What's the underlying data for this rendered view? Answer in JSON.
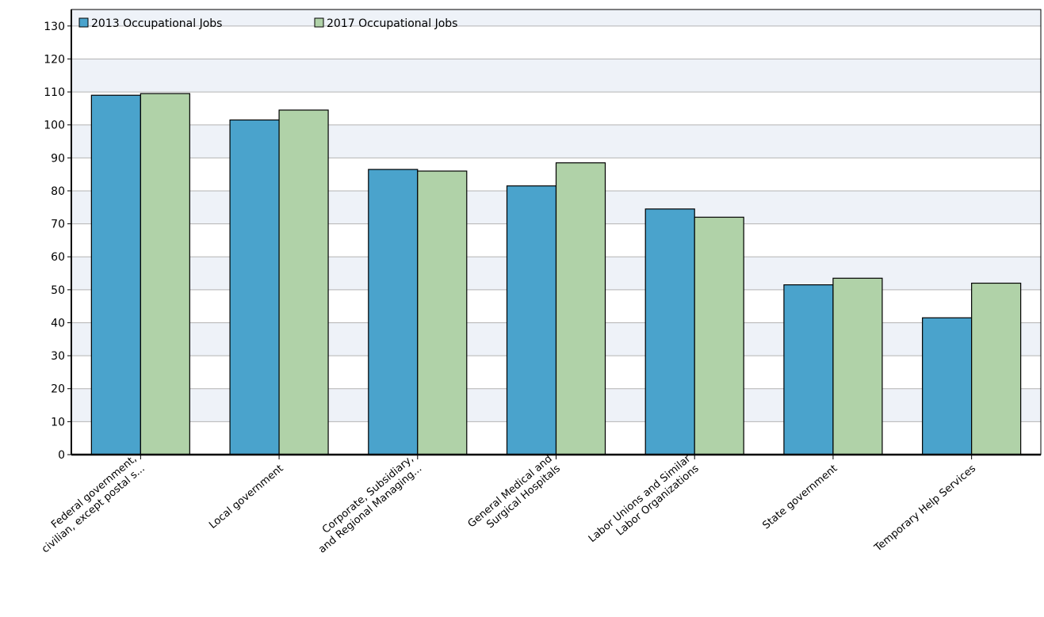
{
  "chart_data": {
    "type": "bar",
    "categories": [
      [
        "Federal government,",
        "civilian, except postal s..."
      ],
      [
        "Local government"
      ],
      [
        "Corporate, Subsidiary,",
        "and Regional Managing..."
      ],
      [
        "General Medical and",
        "Surgical Hospitals"
      ],
      [
        "Labor Unions and Similar",
        "Labor Organizations"
      ],
      [
        "State government"
      ],
      [
        "Temporary Help Services"
      ]
    ],
    "series": [
      {
        "name": "2013 Occupational Jobs",
        "color": "#4aa3cc",
        "values": [
          109,
          101.5,
          86.5,
          81.5,
          74.5,
          51.5,
          41.5
        ]
      },
      {
        "name": "2017 Occupational Jobs",
        "color": "#b0d2a8",
        "values": [
          109.5,
          104.5,
          86,
          88.5,
          72,
          53.5,
          52
        ]
      }
    ],
    "ylim": [
      0,
      135
    ],
    "yticks": [
      0,
      10,
      20,
      30,
      40,
      50,
      60,
      70,
      80,
      90,
      100,
      110,
      120,
      130
    ],
    "grid": true,
    "grid_band_color": "#eef2f8",
    "legend_position": "top-left"
  }
}
